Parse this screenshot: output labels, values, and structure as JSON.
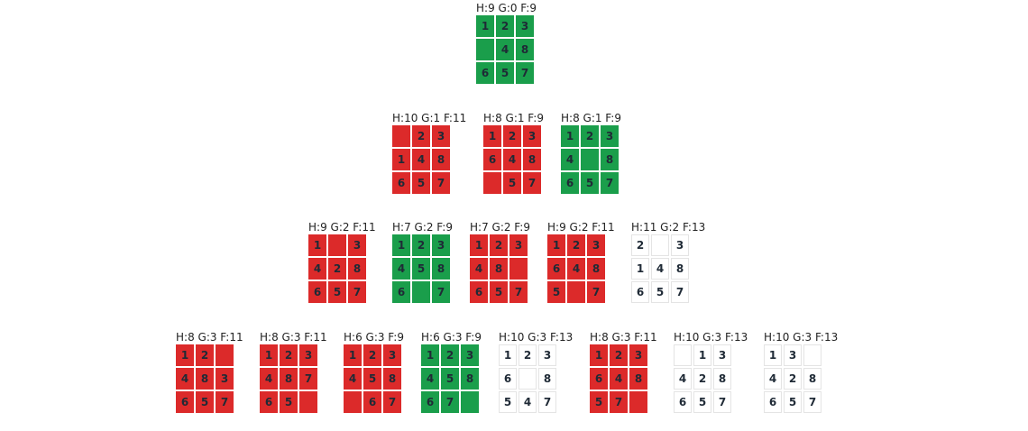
{
  "colors": {
    "green": "#1a9e4b",
    "red": "#dc2a2a",
    "white": "#ffffff"
  },
  "levels": [
    [
      {
        "label": "H:9 G:0 F:9",
        "color": "green",
        "cells": [
          "1",
          "2",
          "3",
          "",
          "4",
          "8",
          "6",
          "5",
          "7"
        ]
      }
    ],
    [
      {
        "label": "H:10 G:1 F:11",
        "color": "red",
        "cells": [
          "",
          "2",
          "3",
          "1",
          "4",
          "8",
          "6",
          "5",
          "7"
        ]
      },
      {
        "label": "H:8 G:1 F:9",
        "color": "red",
        "cells": [
          "1",
          "2",
          "3",
          "6",
          "4",
          "8",
          "",
          "5",
          "7"
        ]
      },
      {
        "label": "H:8 G:1 F:9",
        "color": "green",
        "cells": [
          "1",
          "2",
          "3",
          "4",
          "",
          "8",
          "6",
          "5",
          "7"
        ]
      }
    ],
    [
      {
        "label": "H:9 G:2 F:11",
        "color": "red",
        "cells": [
          "1",
          "",
          "3",
          "4",
          "2",
          "8",
          "6",
          "5",
          "7"
        ]
      },
      {
        "label": "H:7 G:2 F:9",
        "color": "green",
        "cells": [
          "1",
          "2",
          "3",
          "4",
          "5",
          "8",
          "6",
          "",
          "7"
        ]
      },
      {
        "label": "H:7 G:2 F:9",
        "color": "red",
        "cells": [
          "1",
          "2",
          "3",
          "4",
          "8",
          "",
          "6",
          "5",
          "7"
        ]
      },
      {
        "label": "H:9 G:2 F:11",
        "color": "red",
        "cells": [
          "1",
          "2",
          "3",
          "6",
          "4",
          "8",
          "5",
          "",
          "7"
        ]
      },
      {
        "label": "H:11 G:2 F:13",
        "color": "white",
        "cells": [
          "2",
          "",
          "3",
          "1",
          "4",
          "8",
          "6",
          "5",
          "7"
        ]
      }
    ],
    [
      {
        "label": "H:8 G:3 F:11",
        "color": "red",
        "cells": [
          "1",
          "2",
          "",
          "4",
          "8",
          "3",
          "6",
          "5",
          "7"
        ]
      },
      {
        "label": "H:8 G:3 F:11",
        "color": "red",
        "cells": [
          "1",
          "2",
          "3",
          "4",
          "8",
          "7",
          "6",
          "5",
          ""
        ]
      },
      {
        "label": "H:6 G:3 F:9",
        "color": "red",
        "cells": [
          "1",
          "2",
          "3",
          "4",
          "5",
          "8",
          "",
          "6",
          "7"
        ]
      },
      {
        "label": "H:6 G:3 F:9",
        "color": "green",
        "cells": [
          "1",
          "2",
          "3",
          "4",
          "5",
          "8",
          "6",
          "7",
          ""
        ]
      },
      {
        "label": "H:10 G:3 F:13",
        "color": "white",
        "cells": [
          "1",
          "2",
          "3",
          "6",
          "",
          "8",
          "5",
          "4",
          "7"
        ]
      },
      {
        "label": "H:8 G:3 F:11",
        "color": "red",
        "cells": [
          "1",
          "2",
          "3",
          "6",
          "4",
          "8",
          "5",
          "7",
          ""
        ]
      },
      {
        "label": "H:10 G:3 F:13",
        "color": "white",
        "cells": [
          "",
          "1",
          "3",
          "4",
          "2",
          "8",
          "6",
          "5",
          "7"
        ]
      },
      {
        "label": "H:10 G:3 F:13",
        "color": "white",
        "cells": [
          "1",
          "3",
          "",
          "4",
          "2",
          "8",
          "6",
          "5",
          "7"
        ]
      }
    ]
  ]
}
